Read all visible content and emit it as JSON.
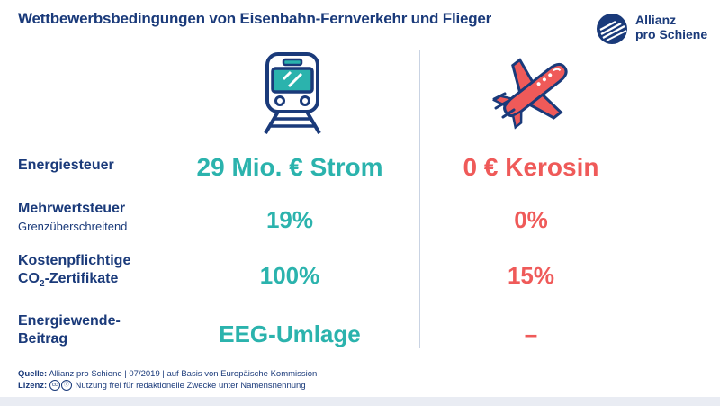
{
  "title": "Wettbewerbsbedingungen von Eisenbahn-Fernverkehr und Flieger",
  "logo": {
    "line1": "Allianz",
    "line2": "pro Schiene"
  },
  "icons": {
    "left": "train-icon",
    "right": "airplane-icon"
  },
  "colors": {
    "navy": "#1a3a7a",
    "rail": "#2bb3ad",
    "air": "#ef5a59"
  },
  "rows": [
    {
      "label": "Energiesteuer",
      "sub": "",
      "rail": "29 Mio. € Strom",
      "air": "0 € Kerosin"
    },
    {
      "label": "Mehrwertsteuer",
      "sub": "Grenzüberschreitend",
      "rail": "19%",
      "air": "0%"
    },
    {
      "label": "Kostenpflichtige",
      "label2a": "CO",
      "label2sub": "2",
      "label2b": "-Zertifikate",
      "rail": "100%",
      "air": "15%"
    },
    {
      "label": "Energiewende-",
      "label2": "Beitrag",
      "rail": "EEG-Umlage",
      "air": "–"
    }
  ],
  "footer": {
    "source_label": "Quelle:",
    "source_text": " Allianz pro Schiene | 07/2019 | auf Basis von Europäische Kommission",
    "license_label": "Lizenz:",
    "license_text": " Nutzung frei für redaktionelle Zwecke unter Namensnennung"
  }
}
